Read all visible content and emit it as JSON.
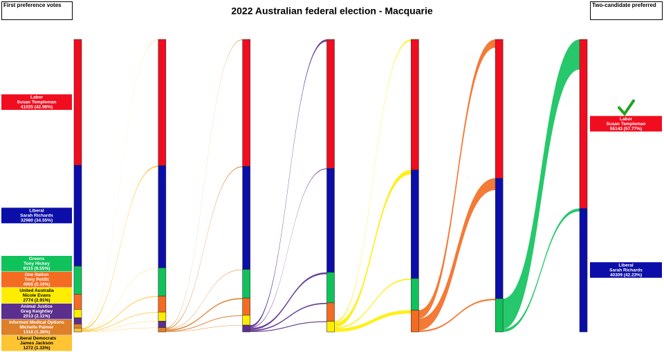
{
  "chart_data": {
    "type": "sankey",
    "title": "2022 Australian federal election - Macquarie",
    "first_pref_heading": "First preference votes",
    "tcp_heading": "Two-candidate preferred",
    "series": [
      {
        "name": "Labor",
        "candidate": "Susan Templeman",
        "color": "#f00d1f",
        "text_color": "#ffffff",
        "values": [
          41025,
          41175,
          41375,
          42075,
          42575,
          45296,
          55143
        ],
        "value_labels": [
          "41025 (42.98%)",
          null,
          null,
          null,
          null,
          null,
          "55143 (57.77%)"
        ]
      },
      {
        "name": "Liberal",
        "candidate": "Sarah Richards",
        "color": "#0b0ea8",
        "text_color": "#ffffff",
        "values": [
          32980,
          33380,
          33680,
          33930,
          35430,
          39309,
          40309
        ],
        "value_labels": [
          "32980 (34.55%)",
          null,
          null,
          null,
          null,
          null,
          "40309 (42.23%)"
        ]
      },
      {
        "name": "Greens",
        "candidate": "Tony Hickey",
        "color": "#10c25b",
        "text_color": "#ffffff",
        "values": [
          9115,
          9195,
          9345,
          9945,
          10345,
          10847,
          null
        ],
        "value_labels": [
          "9115 (9.55%)",
          null,
          null,
          null,
          null,
          null,
          null
        ]
      },
      {
        "name": "One Nation",
        "candidate": "Tony Pettitt",
        "color": "#f36c21",
        "text_color": "#ffffff",
        "values": [
          4955,
          5205,
          5605,
          6005,
          7102,
          null,
          null
        ],
        "value_labels": [
          "4955 (5.19%)",
          null,
          null,
          null,
          null,
          null,
          null
        ]
      },
      {
        "name": "United Australia",
        "candidate": "Nicole Evans",
        "color": "#ffed00",
        "text_color": "#000000",
        "values": [
          2774,
          2974,
          3224,
          3497,
          null,
          null,
          null
        ],
        "value_labels": [
          "2774 (2.91%)",
          null,
          null,
          null,
          null,
          null,
          null
        ]
      },
      {
        "name": "Animal Justice",
        "candidate": "Greg Keightley",
        "color": "#5b2f8e",
        "text_color": "#ffffff",
        "values": [
          2013,
          2103,
          2223,
          null,
          null,
          null,
          null
        ],
        "value_labels": [
          "2013 (2.11%)",
          null,
          null,
          null,
          null,
          null,
          null
        ]
      },
      {
        "name": "Informed Medical Options",
        "candidate": "Michelle Palmer",
        "color": "#de7f2a",
        "text_color": "#ffffff",
        "values": [
          1318,
          1420,
          null,
          null,
          null,
          null,
          null
        ],
        "value_labels": [
          "1318 (1.38%)",
          null,
          null,
          null,
          null,
          null,
          null
        ]
      },
      {
        "name": "Liberal Democrats",
        "candidate": "James Jackson",
        "color": "#fec431",
        "text_color": "#000000",
        "values": [
          1272,
          null,
          null,
          null,
          null,
          null,
          null
        ],
        "value_labels": [
          "1272 (1.33%)",
          null,
          null,
          null,
          null,
          null,
          null
        ]
      }
    ]
  }
}
